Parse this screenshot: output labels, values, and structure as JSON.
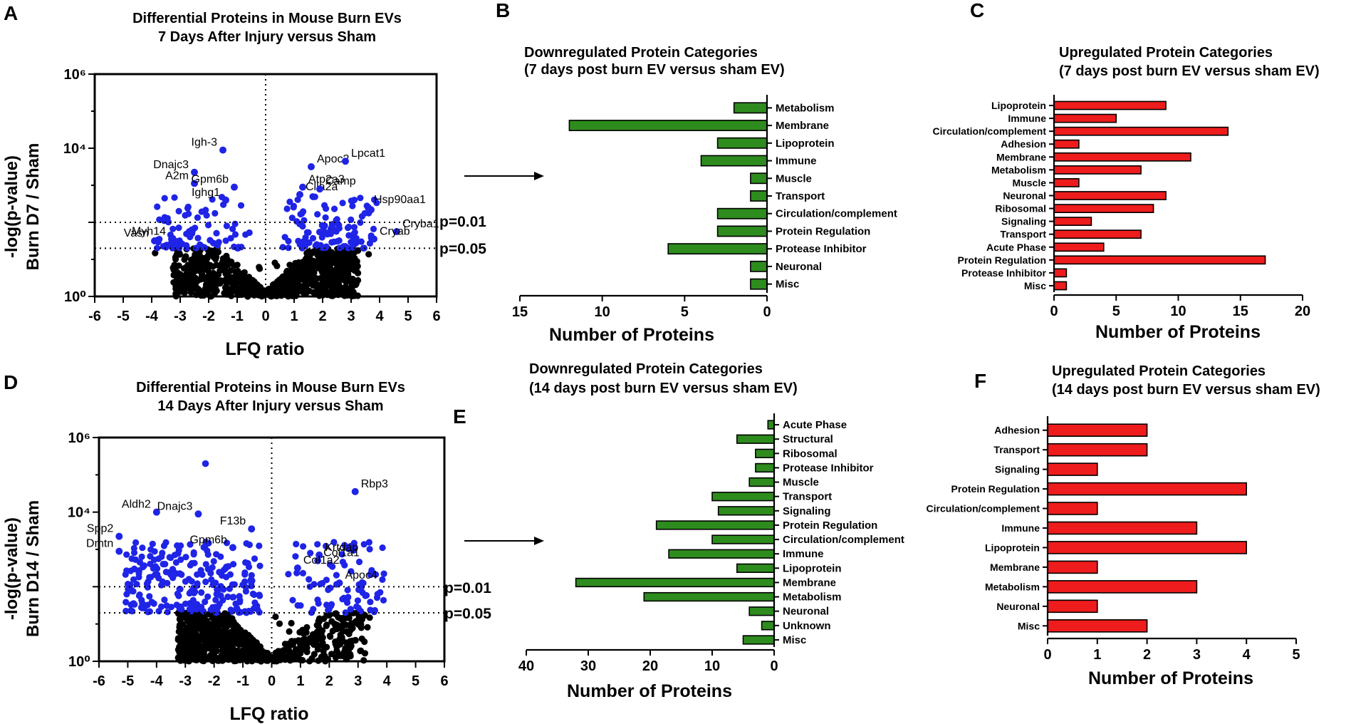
{
  "colors": {
    "blue": "#1f24e6",
    "black": "#000000",
    "green": "#2e8b1e",
    "red": "#ee1c1c"
  },
  "panels": {
    "A": {
      "letter": "A",
      "title_line1": "Differential Proteins in Mouse Burn EVs",
      "title_line2": "7 Days After Injury versus Sham",
      "ylabel_line1": "-log(p-value)",
      "ylabel_line2": "Burn D7 / Sham",
      "xlabel": "LFQ ratio",
      "p01": "p=0.01",
      "p05": "p=0.05"
    },
    "B": {
      "letter": "B",
      "title_line1": "Downregulated Protein Categories",
      "title_line2": "(7 days post burn EV versus sham EV)",
      "xlabel": "Number of Proteins"
    },
    "C": {
      "letter": "C",
      "title_line1": "Upregulated Protein Categories",
      "title_line2": "(7 days post burn EV versus sham EV)",
      "xlabel": "Number of Proteins"
    },
    "D": {
      "letter": "D",
      "title_line1": "Differential Proteins in Mouse Burn EVs",
      "title_line2": "14 Days After Injury versus Sham",
      "ylabel_line1": "-log(p-value)",
      "ylabel_line2": "Burn D14 / Sham",
      "xlabel": "LFQ ratio",
      "p01": "p=0.01",
      "p05": "p=0.05"
    },
    "E": {
      "letter": "E",
      "title_line1": "Downregulated Protein Categories",
      "title_line2": "(14 days post burn EV versus sham EV)",
      "xlabel": "Number of Proteins"
    },
    "F": {
      "letter": "F",
      "title_line1": "Upregulated Protein Categories",
      "title_line2": "(14 days post burn EV versus sham EV)",
      "xlabel": "Number of Proteins"
    }
  },
  "chart_data": [
    {
      "id": "A",
      "type": "scatter",
      "title": "Differential Proteins in Mouse Burn EVs 7 Days After Injury versus Sham",
      "xlabel": "LFQ ratio",
      "ylabel": "-log(p-value) Burn D7 / Sham",
      "xlim": [
        -6,
        6
      ],
      "ylim_exp": [
        0,
        6
      ],
      "x_ticks": [
        "-6",
        "-5",
        "-4",
        "-3",
        "-2",
        "-1",
        "0",
        "1",
        "2",
        "3",
        "4",
        "5",
        "6"
      ],
      "y_ticks": [
        "10⁰",
        "10⁴",
        "10⁶"
      ],
      "threshold_exp": {
        "p01": 2.0,
        "p05": 1.3
      },
      "labeled_points": [
        {
          "label": "Igh-3",
          "x": -1.5,
          "y": 3.95
        },
        {
          "label": "Dnajc3",
          "x": -2.5,
          "y": 3.35
        },
        {
          "label": "A2m",
          "x": -2.5,
          "y": 3.05
        },
        {
          "label": "Gpm6b",
          "x": -1.1,
          "y": 2.95
        },
        {
          "label": "Ighg1",
          "x": -1.4,
          "y": 2.6
        },
        {
          "label": "Myh14",
          "x": -3.3,
          "y": 1.55
        },
        {
          "label": "Vasn",
          "x": -3.9,
          "y": 1.5
        },
        {
          "label": "Apoc2",
          "x": 1.6,
          "y": 3.5
        },
        {
          "label": "Atp2a3",
          "x": 1.3,
          "y": 2.95
        },
        {
          "label": "Clla2a",
          "x": 1.2,
          "y": 2.75
        },
        {
          "label": "Camp",
          "x": 1.9,
          "y": 2.9
        },
        {
          "label": "Lpcat1",
          "x": 2.8,
          "y": 3.65
        },
        {
          "label": "Hsp90aa1",
          "x": 3.6,
          "y": 2.4
        },
        {
          "label": "Cryba1",
          "x": 4.6,
          "y": 1.75
        },
        {
          "label": "Cryab",
          "x": 3.8,
          "y": 1.55
        }
      ]
    },
    {
      "id": "B",
      "type": "bar",
      "orientation": "horizontal-reversed",
      "title": "Downregulated Protein Categories (7 days post burn EV versus sham EV)",
      "xlabel": "Number of Proteins",
      "xlim": [
        0,
        15
      ],
      "x_ticks": [
        "15",
        "10",
        "5",
        "0"
      ],
      "categories": [
        "Metabolism",
        "Membrane",
        "Lipoprotein",
        "Immune",
        "Muscle",
        "Transport",
        "Circulation/complement",
        "Protein Regulation",
        "Protease Inhibitor",
        "Neuronal",
        "Misc"
      ],
      "values": [
        2,
        12,
        3,
        4,
        1,
        1,
        3,
        3,
        6,
        1,
        1
      ]
    },
    {
      "id": "C",
      "type": "bar",
      "orientation": "horizontal",
      "title": "Upregulated Protein Categories (7 days post burn EV versus sham EV)",
      "xlabel": "Number of Proteins",
      "xlim": [
        0,
        20
      ],
      "x_ticks": [
        "0",
        "5",
        "10",
        "15",
        "20"
      ],
      "categories": [
        "Lipoprotein",
        "Immune",
        "Circulation/complement",
        "Adhesion",
        "Membrane",
        "Metabolism",
        "Muscle",
        "Neuronal",
        "Ribosomal",
        "Signaling",
        "Transport",
        "Acute Phase",
        "Protein Regulation",
        "Protease Inhibitor",
        "Misc"
      ],
      "values": [
        9,
        5,
        14,
        2,
        11,
        7,
        2,
        9,
        8,
        3,
        7,
        4,
        17,
        1,
        1
      ]
    },
    {
      "id": "D",
      "type": "scatter",
      "title": "Differential Proteins in Mouse Burn EVs 14 Days After Injury versus Sham",
      "xlabel": "LFQ ratio",
      "ylabel": "-log(p-value) Burn D14 / Sham",
      "xlim": [
        -6,
        6
      ],
      "ylim_exp": [
        0,
        6
      ],
      "x_ticks": [
        "-6",
        "-5",
        "-4",
        "-3",
        "-2",
        "-1",
        "0",
        "1",
        "2",
        "3",
        "4",
        "5",
        "6"
      ],
      "y_ticks": [
        "10⁰",
        "10⁴",
        "10⁶"
      ],
      "threshold_exp": {
        "p01": 2.0,
        "p05": 1.3
      },
      "labeled_points": [
        {
          "label": "Rbp3",
          "x": 2.9,
          "y": 4.55
        },
        {
          "label": "Aldh2",
          "x": -4.0,
          "y": 4.0
        },
        {
          "label": "Dnajc3",
          "x": -2.55,
          "y": 3.95
        },
        {
          "label": "Spp2",
          "x": -5.3,
          "y": 3.35
        },
        {
          "label": "Dmtn",
          "x": -5.3,
          "y": 2.95
        },
        {
          "label": "F13b",
          "x": -0.7,
          "y": 3.55
        },
        {
          "label": "Gpm6b",
          "x": -1.35,
          "y": 3.05
        },
        {
          "label": "Krtdap",
          "x": 1.65,
          "y": 2.85
        },
        {
          "label": "Col1a1",
          "x": 1.6,
          "y": 2.7
        },
        {
          "label": "Col1a2",
          "x": 0.9,
          "y": 2.5
        },
        {
          "label": "Apoc4",
          "x": 2.35,
          "y": 2.1
        }
      ],
      "highlight_point": {
        "x": -2.3,
        "y": 5.3
      }
    },
    {
      "id": "E",
      "type": "bar",
      "orientation": "horizontal-reversed",
      "title": "Downregulated Protein Categories (14 days post burn EV versus sham EV)",
      "xlabel": "Number of Proteins",
      "xlim": [
        0,
        40
      ],
      "x_ticks": [
        "40",
        "30",
        "20",
        "10",
        "0"
      ],
      "categories": [
        "Acute Phase",
        "Structural",
        "Ribosomal",
        "Protease Inhibitor",
        "Muscle",
        "Transport",
        "Signaling",
        "Protein Regulation",
        "Circulation/complement",
        "Immune",
        "Lipoprotein",
        "Membrane",
        "Metabolism",
        "Neuronal",
        "Unknown",
        "Misc"
      ],
      "values": [
        1,
        6,
        3,
        3,
        4,
        10,
        9,
        19,
        10,
        17,
        6,
        32,
        21,
        4,
        2,
        5
      ]
    },
    {
      "id": "F",
      "type": "bar",
      "orientation": "horizontal",
      "title": "Upregulated Protein Categories (14 days post burn EV versus sham EV)",
      "xlabel": "Number of Proteins",
      "xlim": [
        0,
        5
      ],
      "x_ticks": [
        "0",
        "1",
        "2",
        "3",
        "4",
        "5"
      ],
      "categories": [
        "Adhesion",
        "Transport",
        "Signaling",
        "Protein Regulation",
        "Circulation/complement",
        "Immune",
        "Lipoprotein",
        "Membrane",
        "Metabolism",
        "Neuronal",
        "Misc"
      ],
      "values": [
        2,
        2,
        1,
        4,
        1,
        3,
        4,
        1,
        3,
        1,
        2
      ]
    }
  ]
}
